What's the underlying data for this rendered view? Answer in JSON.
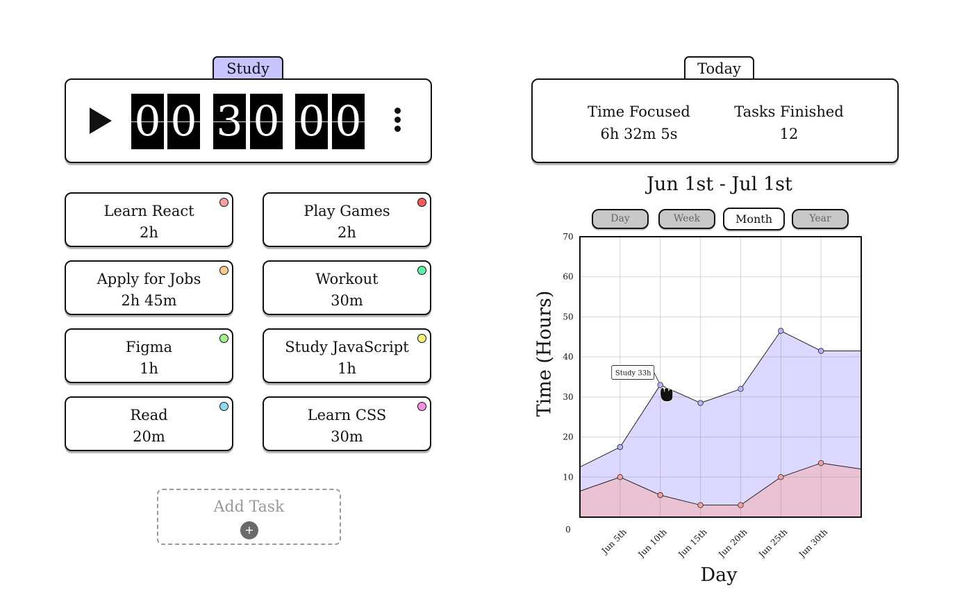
{
  "timer": {
    "category_tab": "Study",
    "digits": [
      "0",
      "0",
      "3",
      "0",
      "0",
      "0"
    ]
  },
  "tasks": [
    {
      "name": "Learn React",
      "time": "2h",
      "color": "#f29f9f"
    },
    {
      "name": "Play Games",
      "time": "2h",
      "color": "#f25c5c"
    },
    {
      "name": "Apply for Jobs",
      "time": "2h 45m",
      "color": "#f9c98f"
    },
    {
      "name": "Workout",
      "time": "30m",
      "color": "#5ef0a6"
    },
    {
      "name": "Figma",
      "time": "1h",
      "color": "#9ff28c"
    },
    {
      "name": "Study JavaScript",
      "time": "1h",
      "color": "#f4f27a"
    },
    {
      "name": "Read",
      "time": "20m",
      "color": "#8fd9f7"
    },
    {
      "name": "Learn CSS",
      "time": "30m",
      "color": "#f592e6"
    }
  ],
  "add_task": {
    "label": "Add Task",
    "icon": "plus-icon",
    "icon_glyph": "+"
  },
  "stats": {
    "tab": "Today",
    "time_focused_label": "Time Focused",
    "time_focused_value": "6h 32m 5s",
    "tasks_finished_label": "Tasks Finished",
    "tasks_finished_value": "12"
  },
  "range_title": "Jun 1st - Jul 1st",
  "periods": [
    "Day",
    "Week",
    "Month",
    "Year"
  ],
  "active_period": "Month",
  "chart_data": {
    "type": "area",
    "ylabel": "Time (Hours)",
    "xlabel": "Day",
    "ylim": [
      0,
      70
    ],
    "yticks": [
      0,
      10,
      20,
      30,
      40,
      50,
      60,
      70
    ],
    "x_tick_labels": [
      "Jun 5th",
      "Jun 10th",
      "Jun 15th",
      "Jun 20th",
      "Jun 25th",
      "Jun 30th"
    ],
    "x": [
      0,
      5,
      10,
      15,
      20,
      25,
      30,
      35
    ],
    "grid": true,
    "tooltip": "Study 33h",
    "series": [
      {
        "values": [
          12.5,
          17.5,
          33,
          28.5,
          32,
          46.5,
          41.5,
          41.5
        ],
        "color": "#dcd8ff",
        "line": "#222222",
        "marker": "#b9b3ff"
      },
      {
        "values": [
          6.5,
          10,
          5.5,
          3,
          3,
          10,
          13.5,
          12
        ],
        "color": "#ebc2d4",
        "line": "#222222",
        "marker": "#f2a2a2"
      }
    ]
  }
}
